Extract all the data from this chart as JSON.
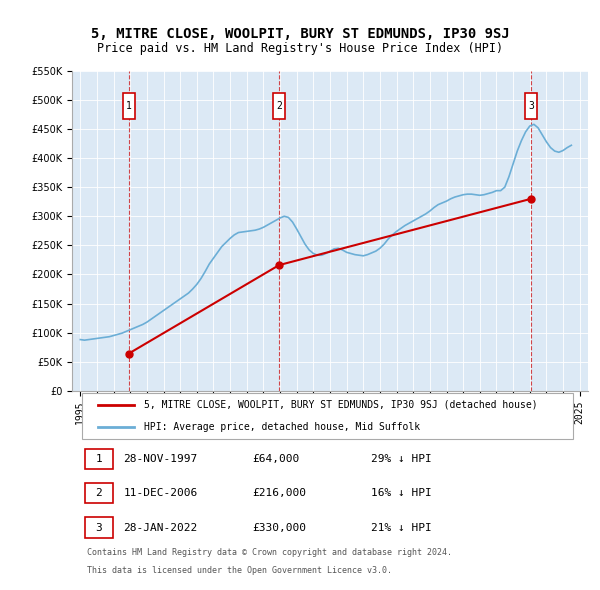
{
  "title": "5, MITRE CLOSE, WOOLPIT, BURY ST EDMUNDS, IP30 9SJ",
  "subtitle": "Price paid vs. HM Land Registry's House Price Index (HPI)",
  "legend_line1": "5, MITRE CLOSE, WOOLPIT, BURY ST EDMUNDS, IP30 9SJ (detached house)",
  "legend_line2": "HPI: Average price, detached house, Mid Suffolk",
  "footer1": "Contains HM Land Registry data © Crown copyright and database right 2024.",
  "footer2": "This data is licensed under the Open Government Licence v3.0.",
  "sales": [
    {
      "num": 1,
      "date_label": "28-NOV-1997",
      "price_label": "£64,000",
      "note": "29% ↓ HPI",
      "x_year": 1997.91,
      "price": 64000
    },
    {
      "num": 2,
      "date_label": "11-DEC-2006",
      "price_label": "£216,000",
      "note": "16% ↓ HPI",
      "x_year": 2006.94,
      "price": 216000
    },
    {
      "num": 3,
      "date_label": "28-JAN-2022",
      "price_label": "£330,000",
      "note": "21% ↓ HPI",
      "x_year": 2022.08,
      "price": 330000
    }
  ],
  "hpi_color": "#6baed6",
  "price_color": "#cc0000",
  "background_color": "#dce9f5",
  "plot_bg": "#dce9f5",
  "ylim": [
    0,
    550000
  ],
  "yticks": [
    0,
    50000,
    100000,
    150000,
    200000,
    250000,
    300000,
    350000,
    400000,
    450000,
    500000,
    550000
  ],
  "xlim_left": 1994.5,
  "xlim_right": 2025.5,
  "xticks": [
    1995,
    1996,
    1997,
    1998,
    1999,
    2000,
    2001,
    2002,
    2003,
    2004,
    2005,
    2006,
    2007,
    2008,
    2009,
    2010,
    2011,
    2012,
    2013,
    2014,
    2015,
    2016,
    2017,
    2018,
    2019,
    2020,
    2021,
    2022,
    2023,
    2024,
    2025
  ],
  "hpi_data": {
    "x": [
      1995.0,
      1995.25,
      1995.5,
      1995.75,
      1996.0,
      1996.25,
      1996.5,
      1996.75,
      1997.0,
      1997.25,
      1997.5,
      1997.75,
      1998.0,
      1998.25,
      1998.5,
      1998.75,
      1999.0,
      1999.25,
      1999.5,
      1999.75,
      2000.0,
      2000.25,
      2000.5,
      2000.75,
      2001.0,
      2001.25,
      2001.5,
      2001.75,
      2002.0,
      2002.25,
      2002.5,
      2002.75,
      2003.0,
      2003.25,
      2003.5,
      2003.75,
      2004.0,
      2004.25,
      2004.5,
      2004.75,
      2005.0,
      2005.25,
      2005.5,
      2005.75,
      2006.0,
      2006.25,
      2006.5,
      2006.75,
      2007.0,
      2007.25,
      2007.5,
      2007.75,
      2008.0,
      2008.25,
      2008.5,
      2008.75,
      2009.0,
      2009.25,
      2009.5,
      2009.75,
      2010.0,
      2010.25,
      2010.5,
      2010.75,
      2011.0,
      2011.25,
      2011.5,
      2011.75,
      2012.0,
      2012.25,
      2012.5,
      2012.75,
      2013.0,
      2013.25,
      2013.5,
      2013.75,
      2014.0,
      2014.25,
      2014.5,
      2014.75,
      2015.0,
      2015.25,
      2015.5,
      2015.75,
      2016.0,
      2016.25,
      2016.5,
      2016.75,
      2017.0,
      2017.25,
      2017.5,
      2017.75,
      2018.0,
      2018.25,
      2018.5,
      2018.75,
      2019.0,
      2019.25,
      2019.5,
      2019.75,
      2020.0,
      2020.25,
      2020.5,
      2020.75,
      2021.0,
      2021.25,
      2021.5,
      2021.75,
      2022.0,
      2022.25,
      2022.5,
      2022.75,
      2023.0,
      2023.25,
      2023.5,
      2023.75,
      2024.0,
      2024.25,
      2024.5
    ],
    "y": [
      88000,
      87000,
      88000,
      89000,
      90000,
      91000,
      92000,
      93000,
      95000,
      97000,
      99000,
      102000,
      105000,
      108000,
      111000,
      114000,
      118000,
      123000,
      128000,
      133000,
      138000,
      143000,
      148000,
      153000,
      158000,
      163000,
      168000,
      175000,
      183000,
      193000,
      205000,
      218000,
      228000,
      238000,
      248000,
      255000,
      262000,
      268000,
      272000,
      273000,
      274000,
      275000,
      276000,
      278000,
      281000,
      285000,
      289000,
      293000,
      297000,
      300000,
      298000,
      290000,
      278000,
      265000,
      252000,
      242000,
      236000,
      233000,
      233000,
      236000,
      240000,
      244000,
      245000,
      242000,
      238000,
      236000,
      234000,
      233000,
      232000,
      234000,
      237000,
      240000,
      245000,
      252000,
      261000,
      268000,
      274000,
      279000,
      284000,
      288000,
      292000,
      296000,
      300000,
      304000,
      309000,
      315000,
      320000,
      323000,
      326000,
      330000,
      333000,
      335000,
      337000,
      338000,
      338000,
      337000,
      336000,
      337000,
      339000,
      341000,
      344000,
      344000,
      350000,
      368000,
      390000,
      412000,
      430000,
      445000,
      455000,
      458000,
      452000,
      440000,
      428000,
      418000,
      412000,
      410000,
      413000,
      418000,
      422000
    ]
  },
  "price_data": {
    "x": [
      1997.91,
      2006.94,
      2022.08
    ],
    "y": [
      64000,
      216000,
      330000
    ]
  }
}
